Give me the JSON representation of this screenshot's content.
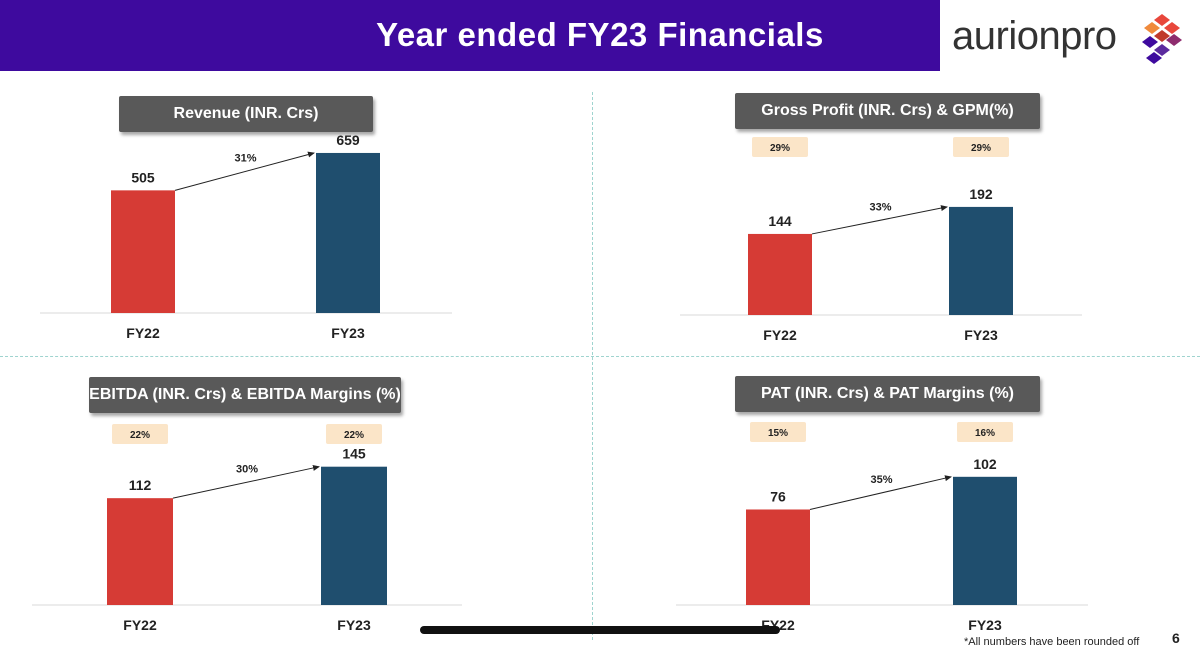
{
  "header": {
    "title": "Year ended FY23 Financials"
  },
  "logo": {
    "text": "aurionpro"
  },
  "colors": {
    "header_bg": "#3e0a9e",
    "fy22": "#d63b35",
    "fy23": "#1f4e6e",
    "badge": "#fbe5c8",
    "panel_title_bg": "#595959"
  },
  "footnote": "*All numbers have been rounded off",
  "page_number": "6",
  "chart_data": [
    {
      "type": "bar",
      "title": "Revenue (INR. Crs)",
      "categories": [
        "FY22",
        "FY23"
      ],
      "values": [
        505,
        659
      ],
      "value_labels": [
        "505",
        "659"
      ],
      "growth": "31%",
      "margins": null,
      "ylim": [
        0,
        700
      ]
    },
    {
      "type": "bar",
      "title": "Gross Profit (INR. Crs) & GPM(%)",
      "categories": [
        "FY22",
        "FY23"
      ],
      "values": [
        144,
        192
      ],
      "value_labels": [
        "144",
        "192"
      ],
      "growth": "33%",
      "margins": [
        "29%",
        "29%"
      ],
      "ylim": [
        0,
        270
      ]
    },
    {
      "type": "bar",
      "title": "EBITDA (INR. Crs) & EBITDA Margins (%)",
      "categories": [
        "FY22",
        "FY23"
      ],
      "values": [
        112,
        145
      ],
      "value_labels": [
        "112",
        "145"
      ],
      "growth": "30%",
      "margins": [
        "22%",
        "22%"
      ],
      "ylim": [
        0,
        195
      ]
    },
    {
      "type": "bar",
      "title": "PAT (INR. Crs) & PAT Margins (%)",
      "categories": [
        "FY22",
        "FY23"
      ],
      "values": [
        76,
        102
      ],
      "value_labels": [
        "76",
        "102"
      ],
      "growth": "35%",
      "margins": [
        "15%",
        "16%"
      ],
      "ylim": [
        0,
        148
      ]
    }
  ]
}
